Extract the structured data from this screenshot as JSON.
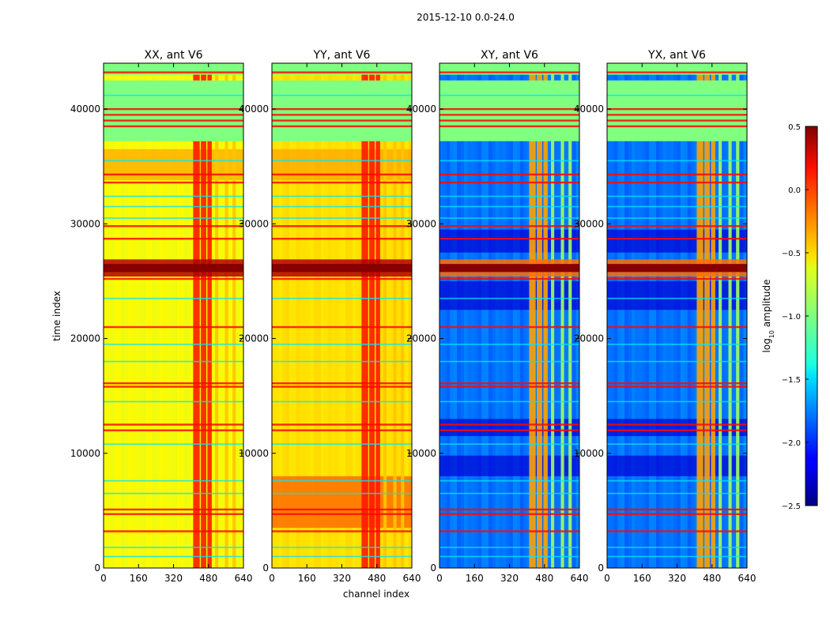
{
  "suptitle": "2015-12-10 0.0-24.0",
  "chart_data": {
    "type": "heatmap",
    "title": "2015-12-10 0.0-24.0",
    "xlabel": "channel index",
    "ylabel": "time index",
    "xlim": [
      0,
      640
    ],
    "ylim": [
      0,
      44000
    ],
    "xticks": [
      0,
      160,
      320,
      480,
      640
    ],
    "yticks": [
      0,
      10000,
      20000,
      30000,
      40000
    ],
    "xtick_labels": [
      "0",
      "160",
      "320",
      "480",
      "640"
    ],
    "ytick_labels": [
      "0",
      "10000",
      "20000",
      "30000",
      "40000"
    ],
    "panels": [
      {
        "title": "XX, ant V6",
        "base_level": -0.6
      },
      {
        "title": "YY, ant V6",
        "base_level": -0.5
      },
      {
        "title": "XY, ant V6",
        "base_level": -1.7
      },
      {
        "title": "YX, ant V6",
        "base_level": -1.7
      }
    ],
    "colorbar": {
      "label": "log",
      "label_sub": "10",
      "label_tail": " amplitude",
      "range": [
        -2.5,
        0.5
      ],
      "ticks": [
        0.5,
        0.0,
        -0.5,
        -1.0,
        -1.5,
        -2.0,
        -2.5
      ],
      "tick_labels": [
        "0.5",
        "0.0",
        "−0.5",
        "−1.0",
        "−1.5",
        "−2.0",
        "−2.5"
      ],
      "colormap": "jet"
    }
  }
}
